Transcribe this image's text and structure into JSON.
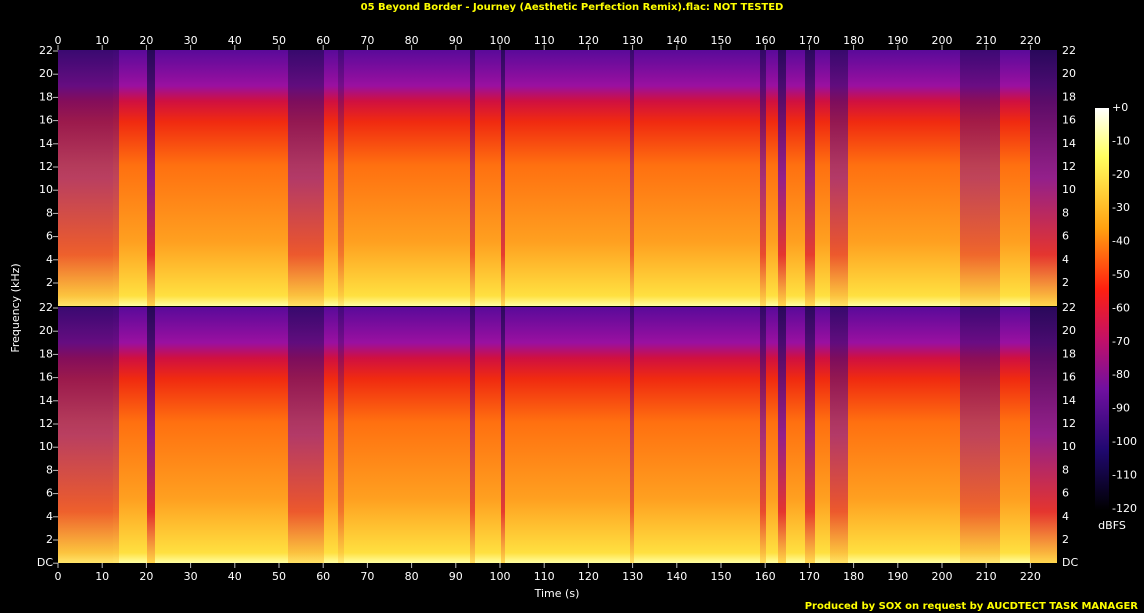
{
  "title": "05 Beyond Border - Journey (Aesthetic Perfection Remix).flac: NOT TESTED",
  "x_axis": {
    "label": "Time (s)",
    "ticks": [
      0,
      10,
      20,
      30,
      40,
      50,
      60,
      70,
      80,
      90,
      100,
      110,
      120,
      130,
      140,
      150,
      160,
      170,
      180,
      190,
      200,
      210,
      220
    ]
  },
  "y_axis": {
    "label": "Frequency (kHz)",
    "top_channel_ticks": [
      "22",
      "20",
      "18",
      "16",
      "14",
      "12",
      "10",
      "8",
      "6",
      "4",
      "2"
    ],
    "bottom_channel_ticks": [
      "22",
      "20",
      "18",
      "16",
      "14",
      "12",
      "10",
      "8",
      "6",
      "4",
      "2",
      "DC"
    ]
  },
  "colorbar": {
    "label": "dBFS",
    "ticks": [
      "+0",
      "-10",
      "-20",
      "-30",
      "-40",
      "-50",
      "-60",
      "-70",
      "-80",
      "-90",
      "-100",
      "-110",
      "-120"
    ]
  },
  "footer": "Produced by SOX on request by AUCDTECT TASK MANAGER"
}
